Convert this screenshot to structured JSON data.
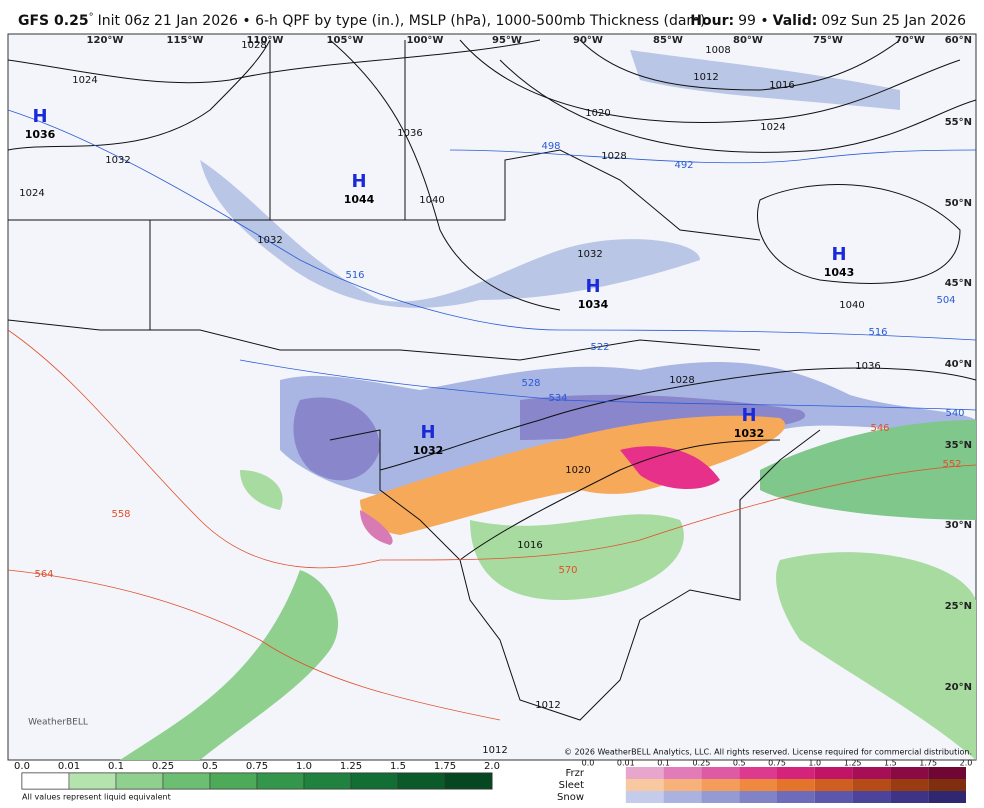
{
  "header": {
    "model": "GFS 0.25",
    "degree": "°",
    "title": "Init 06z 21 Jan 2026 • 6-h QPF by type (in.), MSLP (hPa), 1000-500mb Thickness (dam)",
    "hour_label": "Hour:",
    "hour": "99 •",
    "valid_label": "Valid:",
    "valid": "09z Sun 25 Jan 2026"
  },
  "map": {
    "lon_labels": [
      "120°W",
      "115°W",
      "110°W",
      "105°W",
      "100°W",
      "95°W",
      "90°W",
      "85°W",
      "80°W",
      "75°W",
      "70°W"
    ],
    "lat_labels": [
      "60°N",
      "55°N",
      "50°N",
      "45°N",
      "40°N",
      "35°N",
      "30°N",
      "25°N",
      "20°N"
    ],
    "highs": [
      {
        "label": "H",
        "pressure": "1036"
      },
      {
        "label": "H",
        "pressure": "1044"
      },
      {
        "label": "H",
        "pressure": "1034"
      },
      {
        "label": "H",
        "pressure": "1043"
      },
      {
        "label": "H",
        "pressure": "1032"
      },
      {
        "label": "H",
        "pressure": "1032"
      }
    ],
    "isobar_labels": [
      "1024",
      "1032",
      "1024",
      "1028",
      "1036",
      "1040",
      "1032",
      "1008",
      "1012",
      "1016",
      "1020",
      "1024",
      "1028",
      "1032",
      "1036",
      "1040",
      "1028",
      "1020",
      "1016",
      "1012",
      "1012"
    ],
    "thickness_labels_blue": [
      "498",
      "492",
      "516",
      "528",
      "522",
      "534",
      "504",
      "516",
      "540"
    ],
    "thickness_labels_red": [
      "546",
      "552",
      "558",
      "564",
      "570"
    ],
    "copyright": "© 2026 WeatherBELL Analytics, LLC. All rights reserved. License required for commercial distribution.",
    "logo": "WeatherBELL"
  },
  "legend": {
    "rain_ticks": [
      "0.0",
      "0.01",
      "0.1",
      "0.25",
      "0.5",
      "0.75",
      "1.0",
      "1.25",
      "1.5",
      "1.75",
      "2.0"
    ],
    "types": [
      "Frzr",
      "Sleet",
      "Snow"
    ],
    "type_ticks": [
      "0.0",
      "0.01",
      "0.1",
      "0.25",
      "0.5",
      "0.75",
      "1.0",
      "1.25",
      "1.5",
      "1.75",
      "2.0"
    ],
    "footnote": "All values represent liquid equivalent"
  }
}
